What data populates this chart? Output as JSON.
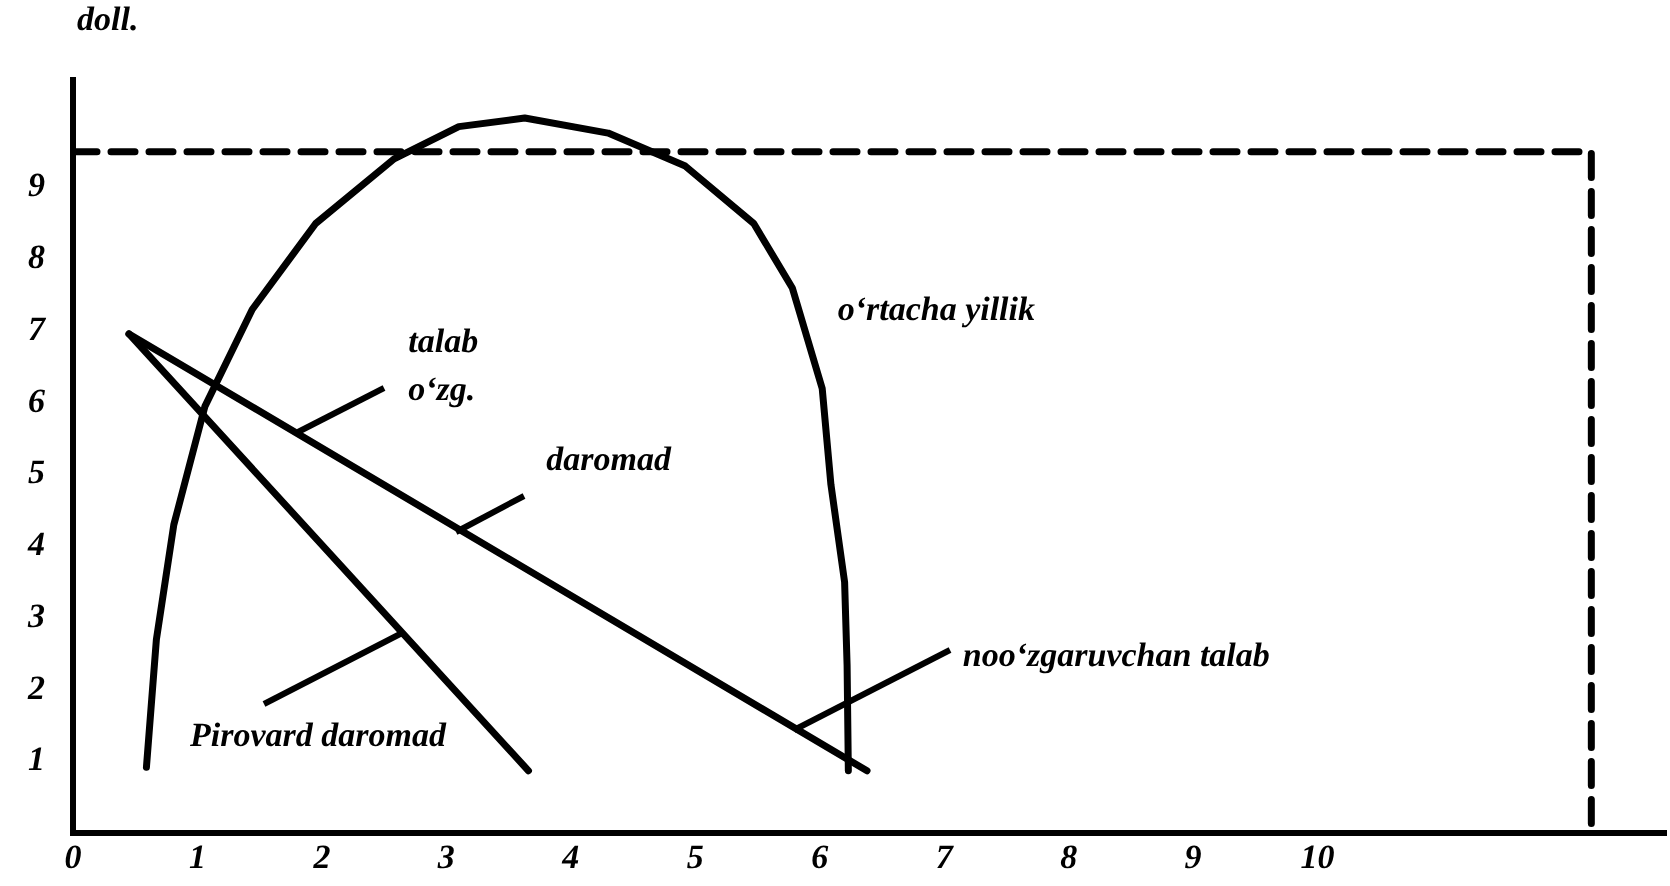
{
  "chart_data": {
    "type": "line",
    "ylabel": "doll.",
    "marker": "none",
    "xlim": [
      0,
      12.8
    ],
    "ylim": [
      0,
      10.5
    ],
    "xticks": [
      0,
      1,
      2,
      3,
      4,
      5,
      6,
      7,
      8,
      9,
      10
    ],
    "yticks": [
      1,
      2,
      3,
      4,
      5,
      6,
      7,
      8,
      9
    ],
    "series": [
      {
        "color": "#000000",
        "line_style": "solid",
        "x": [
          0.59,
          0.67,
          0.81,
          1.06,
          1.44,
          1.95,
          2.58,
          3.1,
          3.63,
          4.3,
          4.92,
          5.47,
          5.78,
          6.02,
          6.09,
          6.2,
          6.22,
          6.23
        ],
        "values": [
          0.92,
          2.7,
          4.3,
          5.95,
          7.3,
          8.5,
          9.4,
          9.85,
          9.97,
          9.76,
          9.3,
          8.5,
          7.6,
          6.2,
          4.86,
          3.5,
          2.34,
          0.87
        ]
      },
      {
        "color": "#000000",
        "line_style": "solid",
        "x": [
          0.45,
          6.38
        ],
        "values": [
          6.96,
          0.87
        ]
      },
      {
        "color": "#000000",
        "line_style": "solid",
        "x": [
          0.45,
          3.66
        ],
        "values": [
          6.96,
          0.87
        ]
      },
      {
        "color": "#000000",
        "line_style": "dashed",
        "x": [
          0,
          12.2,
          12.2
        ],
        "values": [
          9.5,
          9.5,
          0
        ]
      }
    ],
    "annotations": [
      {
        "text": "talab\no‘zg.",
        "x": 1.81,
        "y": 5.6
      },
      {
        "text": "daromad",
        "x": 3.08,
        "y": 4.2
      },
      {
        "text": "Pirovard daromad",
        "x": 2.66,
        "y": 2.8
      },
      {
        "text": "noo‘zgaruvchan talab",
        "x": 5.8,
        "y": 1.45
      },
      "o‘rtacha yillik"
    ]
  }
}
